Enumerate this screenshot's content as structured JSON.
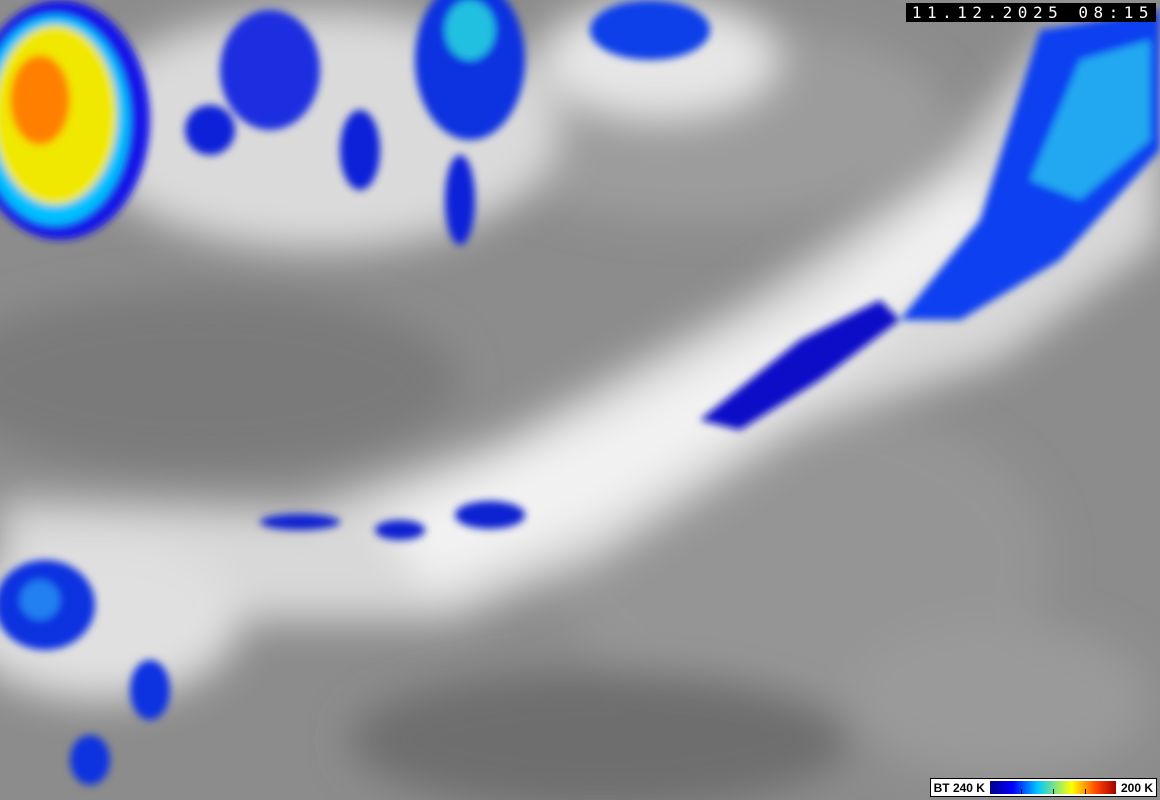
{
  "timestamp": "11.12.2025 08:15",
  "legend": {
    "label_left": "BT 240 K",
    "label_right": "200 K",
    "colors": [
      "#00008c",
      "#0000ff",
      "#00c8ff",
      "#ffff00",
      "#ff4000",
      "#a00000"
    ]
  },
  "background_color": "#8a8a8a"
}
